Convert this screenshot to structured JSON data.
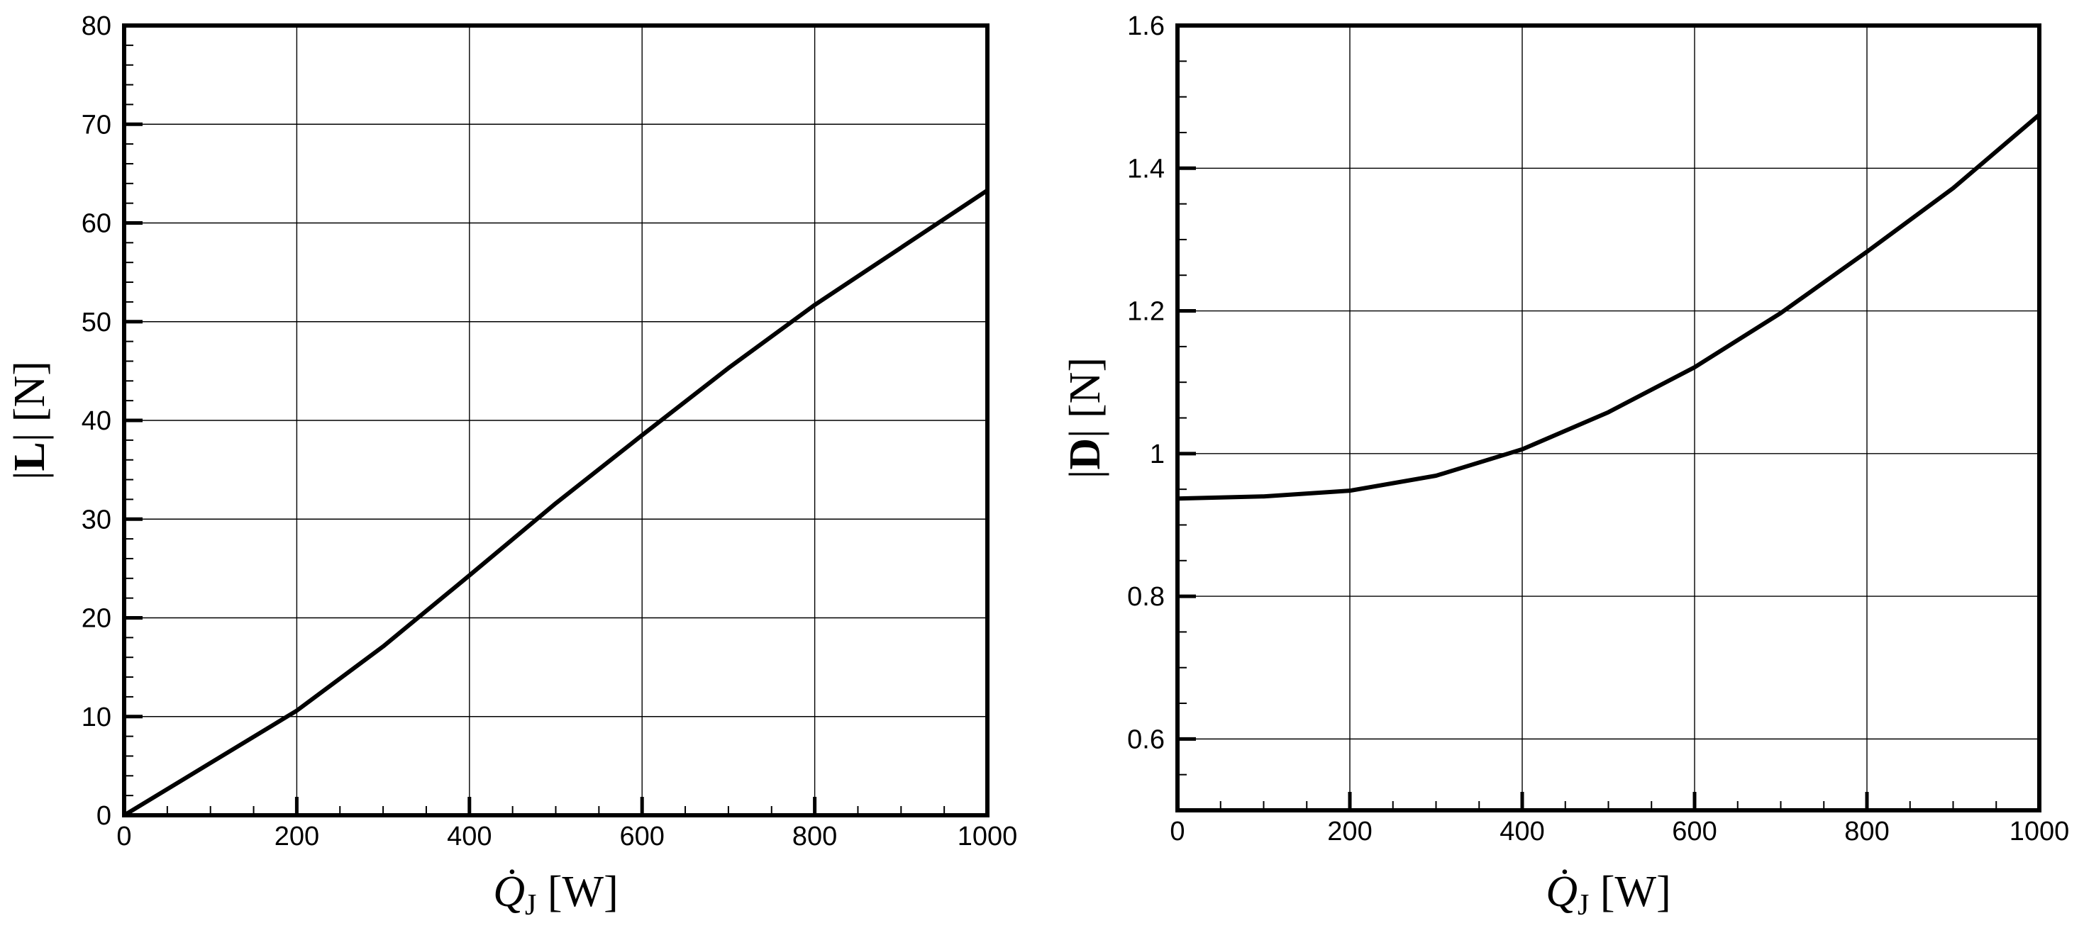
{
  "chart_data": [
    {
      "type": "line",
      "xlabel": "Q̇J [W]",
      "ylabel": "|L| [N]",
      "xlim": [
        0,
        1000
      ],
      "ylim": [
        0,
        80
      ],
      "grid": true,
      "x_ticks": [
        "0",
        "200",
        "400",
        "600",
        "800",
        "1000"
      ],
      "y_ticks": [
        "0",
        "10",
        "20",
        "30",
        "40",
        "50",
        "60",
        "70",
        "80"
      ],
      "series": [
        {
          "x": [
            0,
            100,
            200,
            300,
            400,
            500,
            600,
            700,
            800,
            900,
            1000
          ],
          "values": [
            0,
            5.3,
            10.6,
            17.1,
            24.3,
            31.6,
            38.5,
            45.3,
            51.7,
            57.5,
            63.3
          ]
        }
      ]
    },
    {
      "type": "line",
      "xlabel": "Q̇J [W]",
      "ylabel": "|D| [N]",
      "xlim": [
        0,
        1000
      ],
      "ylim": [
        0.5,
        1.6
      ],
      "grid": true,
      "x_ticks": [
        "0",
        "200",
        "400",
        "600",
        "800",
        "1000"
      ],
      "y_ticks": [
        "0.6",
        "0.8",
        "1",
        "1.2",
        "1.4",
        "1.6"
      ],
      "series": [
        {
          "x": [
            0,
            100,
            200,
            300,
            400,
            500,
            600,
            700,
            800,
            900,
            1000
          ],
          "values": [
            0.937,
            0.94,
            0.948,
            0.969,
            1.006,
            1.058,
            1.121,
            1.197,
            1.283,
            1.372,
            1.475
          ]
        }
      ]
    }
  ]
}
